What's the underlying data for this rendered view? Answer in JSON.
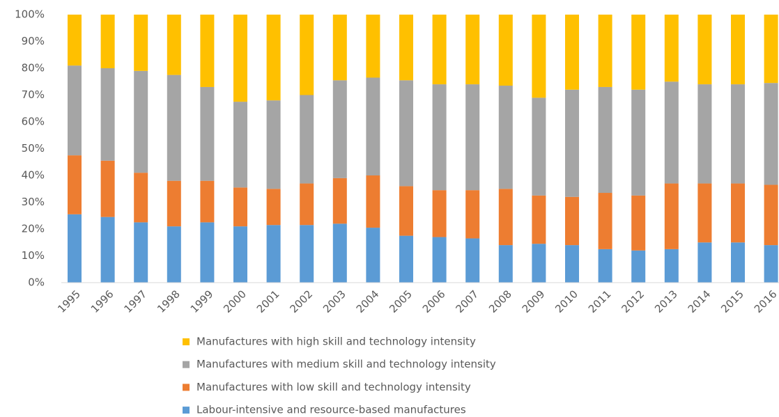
{
  "chart_data": {
    "type": "stacked_bar",
    "categories": [
      "1995",
      "1996",
      "1997",
      "1998",
      "1999",
      "2000",
      "2001",
      "2002",
      "2003",
      "2004",
      "2005",
      "2006",
      "2007",
      "2008",
      "2009",
      "2010",
      "2011",
      "2012",
      "2013",
      "2014",
      "2015",
      "2016"
    ],
    "series": [
      {
        "name": "Labour-intensive and resource-based manufactures",
        "color": "#5b9bd5",
        "values": [
          25.5,
          24.5,
          22.5,
          21,
          22.5,
          21,
          21.5,
          21.5,
          22,
          20.5,
          17.5,
          17,
          16.5,
          14,
          14.5,
          14,
          12.5,
          12,
          12.5,
          15,
          15,
          14
        ]
      },
      {
        "name": "Manufactures with low skill and technology intensity",
        "color": "#ed7d31",
        "values": [
          22,
          21,
          18.5,
          17,
          15.5,
          14.5,
          13.5,
          15.5,
          17,
          19.5,
          18.5,
          17.5,
          18,
          21,
          18,
          18,
          21,
          20.5,
          24.5,
          22,
          22,
          22.5
        ]
      },
      {
        "name": "Manufactures with medium skill and technology intensity",
        "color": "#a5a5a5",
        "values": [
          33.5,
          34.5,
          38,
          39.5,
          35,
          32,
          33,
          33,
          36.5,
          36.5,
          39.5,
          39.5,
          39.5,
          38.5,
          36.5,
          40,
          39.5,
          39.5,
          38,
          37,
          37,
          38
        ]
      },
      {
        "name": "Manufactures with high skill and technology intensity",
        "color": "#ffc000",
        "values": [
          19,
          20,
          21,
          22.5,
          27,
          32.5,
          32,
          30,
          24.5,
          23.5,
          24.5,
          26,
          26,
          26.5,
          31,
          28,
          27,
          28,
          25,
          26,
          26,
          25.5
        ]
      }
    ],
    "ylim": [
      0,
      100
    ],
    "yticks": [
      {
        "value": 0,
        "label": "0%"
      },
      {
        "value": 10,
        "label": "10%"
      },
      {
        "value": 20,
        "label": "20%"
      },
      {
        "value": 30,
        "label": "30%"
      },
      {
        "value": 40,
        "label": "40%"
      },
      {
        "value": 50,
        "label": "50%"
      },
      {
        "value": 60,
        "label": "60%"
      },
      {
        "value": 70,
        "label": "70%"
      },
      {
        "value": 80,
        "label": "80%"
      },
      {
        "value": 90,
        "label": "90%"
      },
      {
        "value": 100,
        "label": "100%"
      }
    ],
    "grid": false,
    "legend": "bottom"
  }
}
